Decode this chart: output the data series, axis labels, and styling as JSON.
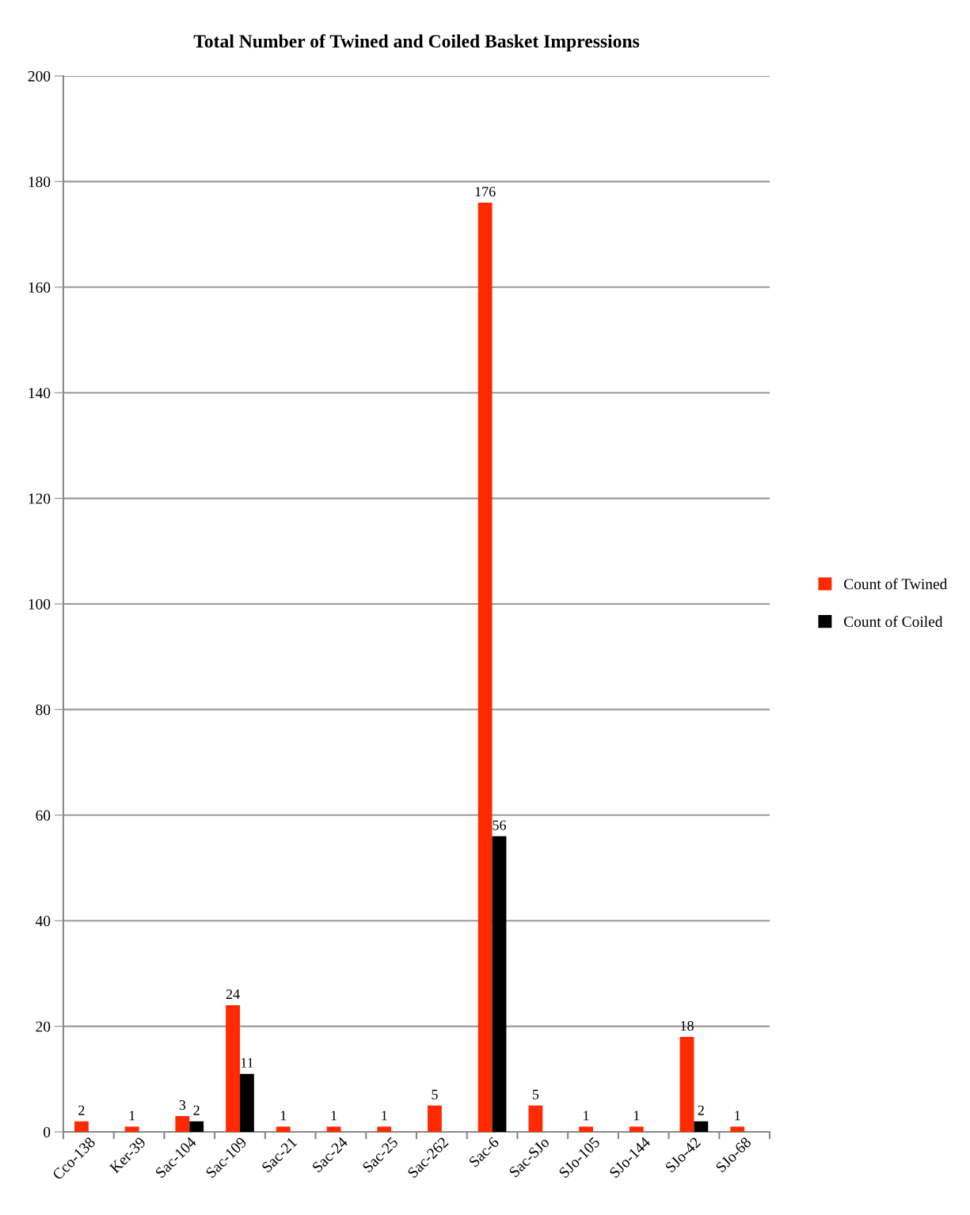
{
  "chart_data": {
    "type": "bar",
    "title": "Total Number of Twined and Coiled Basket Impressions",
    "categories": [
      "Cco-138",
      "Ker-39",
      "Sac-104",
      "Sac-109",
      "Sac-21",
      "Sac-24",
      "Sac-25",
      "Sac-262",
      "Sac-6",
      "Sac-SJo",
      "SJo-105",
      "SJo-144",
      "SJo-42",
      "SJo-68"
    ],
    "series": [
      {
        "name": "Count of Twined",
        "color": "#ff2a00",
        "values": [
          2,
          1,
          3,
          24,
          1,
          1,
          1,
          5,
          176,
          5,
          1,
          1,
          18,
          1
        ]
      },
      {
        "name": "Count of Coiled",
        "color": "#000000",
        "values": [
          null,
          null,
          2,
          11,
          null,
          null,
          null,
          null,
          56,
          null,
          null,
          null,
          2,
          null
        ]
      }
    ],
    "ylim": [
      0,
      200
    ],
    "yticks": [
      0,
      20,
      40,
      60,
      80,
      100,
      120,
      140,
      160,
      180,
      200
    ],
    "grid": "y",
    "legend": "right",
    "data_labels": true
  }
}
